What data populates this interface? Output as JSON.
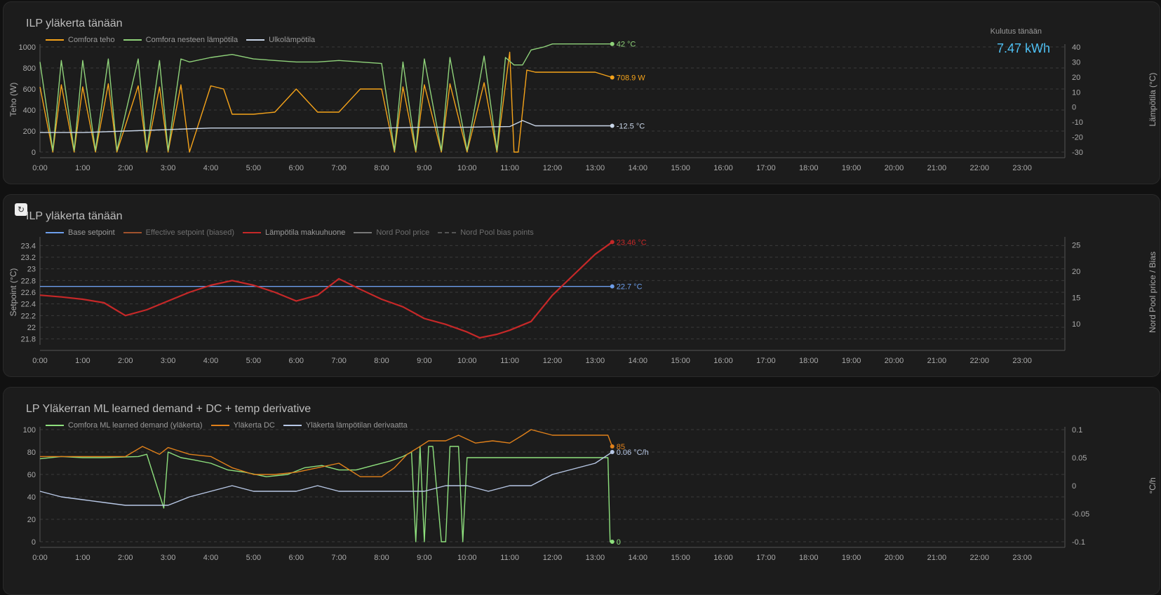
{
  "charts": [
    {
      "title": "ILP yläkerta tänään",
      "legend": [
        "Comfora teho",
        "Comfora nesteen lämpötila",
        "Ulkolämpötila"
      ],
      "kpi": {
        "label": "Kulutus tänään",
        "value": "7.47 kWh"
      },
      "colors": {
        "power": "#f5a31a",
        "liquid": "#8fd27a",
        "outdoor": "#c9d6e8",
        "grid": "#3a3a3a",
        "axis": "#aaaaaa"
      }
    },
    {
      "title": "ILP yläkerta tänään",
      "refresh_icon": "↻",
      "legend": [
        "Base setpoint",
        "Effective setpoint (biased)",
        "Lämpötila makuuhuone",
        "Nord Pool price",
        "Nord Pool bias points"
      ],
      "colors": {
        "base": "#6d9eeb",
        "effective": "#a0522d",
        "room": "#c62828",
        "price": "#777777",
        "bias": "#555555"
      }
    },
    {
      "title": "LP Yläkerran ML learned demand + DC + temp derivative",
      "legend": [
        "Comfora ML learned demand (yläkerta)",
        "Yläkerta DC",
        "Yläkerta lämpötilan derivaatta"
      ],
      "colors": {
        "demand": "#8ee07d",
        "dc": "#e0801a",
        "deriv": "#b8c8e6"
      }
    }
  ],
  "chart_data": [
    {
      "type": "line",
      "title": "ILP yläkerta tänään",
      "x_ticks": [
        "0:00",
        "1:00",
        "2:00",
        "3:00",
        "4:00",
        "5:00",
        "6:00",
        "7:00",
        "8:00",
        "9:00",
        "10:00",
        "11:00",
        "12:00",
        "13:00",
        "14:00",
        "15:00",
        "16:00",
        "17:00",
        "18:00",
        "19:00",
        "20:00",
        "21:00",
        "22:00",
        "23:00"
      ],
      "y_left": {
        "label": "Teho (W)",
        "range": [
          0,
          1000
        ],
        "ticks": [
          "0",
          "200",
          "400",
          "600",
          "800",
          "1000"
        ]
      },
      "y_right": {
        "label": "Lämpötila (°C)",
        "range": [
          -30,
          40
        ],
        "ticks": [
          "-30",
          "-20",
          "-10",
          "0",
          "10",
          "20",
          "30",
          "40"
        ]
      },
      "series": [
        {
          "name": "Comfora teho",
          "axis": "left",
          "end_label": "708.9 W",
          "x": [
            0,
            0.3,
            0.5,
            0.8,
            1.0,
            1.3,
            1.6,
            1.8,
            2.3,
            2.5,
            2.8,
            3.0,
            3.3,
            3.5,
            4.0,
            4.3,
            4.5,
            5.0,
            5.5,
            6.0,
            6.5,
            7.0,
            7.5,
            8.0,
            8.3,
            8.5,
            8.8,
            9.0,
            9.4,
            9.6,
            10.0,
            10.4,
            10.7,
            10.9,
            11.0,
            11.1,
            11.2,
            11.4,
            11.6,
            12.0,
            12.5,
            13.0,
            13.4
          ],
          "y": [
            620,
            0,
            640,
            0,
            620,
            0,
            650,
            0,
            630,
            0,
            620,
            0,
            640,
            0,
            630,
            600,
            360,
            360,
            380,
            600,
            380,
            380,
            600,
            600,
            0,
            620,
            0,
            640,
            0,
            650,
            0,
            660,
            0,
            640,
            950,
            0,
            0,
            780,
            760,
            760,
            760,
            760,
            710
          ]
        },
        {
          "name": "Comfora nesteen lämpötila",
          "axis": "right",
          "end_label": "42 °C",
          "x": [
            0,
            0.3,
            0.5,
            0.8,
            1.0,
            1.3,
            1.6,
            1.8,
            2.3,
            2.5,
            2.8,
            3.0,
            3.3,
            3.5,
            4.0,
            4.5,
            5.0,
            5.5,
            6.0,
            6.5,
            7.0,
            7.5,
            8.0,
            8.3,
            8.5,
            8.8,
            9.0,
            9.4,
            9.6,
            10.0,
            10.4,
            10.7,
            10.9,
            11.1,
            11.3,
            11.5,
            11.8,
            12.0,
            12.5,
            13.0,
            13.4
          ],
          "y": [
            30,
            -29,
            31,
            -29,
            31,
            -29,
            32,
            -29,
            32,
            -29,
            31,
            -29,
            32,
            30,
            33,
            35,
            32,
            31,
            30,
            30,
            31,
            30,
            29,
            -29,
            30,
            -29,
            32,
            -29,
            33,
            -29,
            34,
            -29,
            33,
            28,
            28,
            38,
            40,
            42,
            42,
            42,
            42
          ]
        },
        {
          "name": "Ulkolämpötila",
          "axis": "right",
          "end_label": "-12.5 °C",
          "x": [
            0,
            1,
            2,
            3,
            4,
            5,
            6,
            7,
            8,
            9,
            10,
            11,
            11.3,
            11.6,
            12,
            13,
            13.4
          ],
          "y": [
            -17,
            -17,
            -16,
            -15,
            -14,
            -14,
            -14,
            -14,
            -14,
            -13.5,
            -13.5,
            -13,
            -9,
            -12.5,
            -12.5,
            -12.5,
            -12.5
          ]
        }
      ]
    },
    {
      "type": "line",
      "title": "ILP yläkerta tänään",
      "x_ticks": [
        "0:00",
        "1:00",
        "2:00",
        "3:00",
        "4:00",
        "5:00",
        "6:00",
        "7:00",
        "8:00",
        "9:00",
        "10:00",
        "11:00",
        "12:00",
        "13:00",
        "14:00",
        "15:00",
        "16:00",
        "17:00",
        "18:00",
        "19:00",
        "20:00",
        "21:00",
        "22:00",
        "23:00"
      ],
      "y_left": {
        "label": "Setpoint (°C)",
        "range": [
          21.7,
          23.5
        ],
        "ticks": [
          "21.8",
          "22",
          "22.2",
          "22.4",
          "22.6",
          "22.8",
          "23",
          "23.2",
          "23.4"
        ]
      },
      "y_right": {
        "label": "Nord Pool price / Bias",
        "range": [
          6,
          26
        ],
        "ticks": [
          "10",
          "15",
          "20",
          "25"
        ]
      },
      "series": [
        {
          "name": "Base setpoint",
          "axis": "left",
          "end_label": "22.7 °C",
          "x": [
            0,
            13.4
          ],
          "y": [
            22.7,
            22.7
          ]
        },
        {
          "name": "Lämpötila makuuhuone",
          "axis": "left",
          "end_label": "23.46 °C",
          "x": [
            0,
            0.5,
            1.0,
            1.5,
            2.0,
            2.5,
            3.0,
            3.5,
            4.0,
            4.5,
            5.0,
            5.5,
            6.0,
            6.5,
            7.0,
            7.5,
            8.0,
            8.5,
            9.0,
            9.5,
            10.0,
            10.3,
            10.7,
            11.0,
            11.5,
            12.0,
            12.5,
            13.0,
            13.4
          ],
          "y": [
            22.55,
            22.52,
            22.48,
            22.42,
            22.2,
            22.3,
            22.45,
            22.6,
            22.72,
            22.8,
            22.72,
            22.6,
            22.45,
            22.55,
            22.83,
            22.65,
            22.48,
            22.35,
            22.15,
            22.05,
            21.92,
            21.82,
            21.88,
            21.95,
            22.1,
            22.55,
            22.9,
            23.25,
            23.46
          ]
        }
      ]
    },
    {
      "type": "line",
      "title": "LP Yläkerran ML learned demand + DC + temp derivative",
      "x_ticks": [
        "0:00",
        "1:00",
        "2:00",
        "3:00",
        "4:00",
        "5:00",
        "6:00",
        "7:00",
        "8:00",
        "9:00",
        "10:00",
        "11:00",
        "12:00",
        "13:00",
        "14:00",
        "15:00",
        "16:00",
        "17:00",
        "18:00",
        "19:00",
        "20:00",
        "21:00",
        "22:00",
        "23:00"
      ],
      "y_left": {
        "label": "",
        "range": [
          0,
          100
        ],
        "ticks": [
          "0",
          "20",
          "40",
          "60",
          "80",
          "100"
        ]
      },
      "y_right": {
        "label": "°C/h",
        "range": [
          -0.1,
          0.1
        ],
        "ticks": [
          "-0.1",
          "-0.05",
          "0",
          "0.05",
          "0.1"
        ]
      },
      "series": [
        {
          "name": "Comfora ML learned demand (yläkerta)",
          "axis": "left",
          "end_label": "0",
          "x": [
            0,
            0.5,
            1.0,
            1.5,
            2.3,
            2.5,
            2.9,
            3.0,
            3.3,
            3.6,
            4.0,
            4.4,
            4.8,
            5.3,
            5.8,
            6.2,
            6.6,
            7.0,
            7.4,
            7.8,
            8.2,
            8.5,
            8.7,
            8.8,
            8.9,
            9.0,
            9.1,
            9.2,
            9.4,
            9.5,
            9.6,
            9.8,
            9.9,
            10.0,
            10.2,
            11.0,
            12.0,
            13.0,
            13.3,
            13.35,
            13.4
          ],
          "y": [
            74,
            76,
            75,
            75,
            76,
            78,
            30,
            80,
            75,
            73,
            70,
            64,
            62,
            58,
            60,
            66,
            68,
            64,
            64,
            68,
            72,
            76,
            80,
            0,
            85,
            0,
            85,
            85,
            0,
            0,
            85,
            85,
            0,
            75,
            75,
            75,
            75,
            75,
            75,
            0,
            0
          ]
        },
        {
          "name": "Yläkerta DC",
          "axis": "left",
          "end_label": "85",
          "x": [
            0,
            1,
            2,
            2.4,
            2.8,
            3.0,
            3.5,
            4.0,
            4.5,
            5.0,
            5.5,
            6.0,
            6.5,
            7.0,
            7.5,
            8.0,
            8.3,
            8.6,
            8.9,
            9.1,
            9.5,
            9.8,
            10.2,
            10.6,
            11.0,
            11.3,
            11.5,
            12.0,
            12.5,
            13.0,
            13.3,
            13.4
          ],
          "y": [
            76,
            76,
            76,
            85,
            78,
            84,
            78,
            76,
            66,
            60,
            60,
            62,
            66,
            70,
            58,
            58,
            66,
            78,
            85,
            90,
            90,
            95,
            88,
            90,
            88,
            95,
            100,
            95,
            95,
            95,
            95,
            85
          ]
        },
        {
          "name": "Yläkerta lämpötilan derivaatta",
          "axis": "right",
          "end_label": "0.06 °C/h",
          "x": [
            0,
            0.5,
            1.0,
            1.5,
            2.0,
            2.5,
            3.0,
            3.5,
            4.0,
            4.5,
            5.0,
            5.5,
            6.0,
            6.5,
            7.0,
            7.5,
            8.0,
            8.5,
            9.0,
            9.5,
            10.0,
            10.5,
            11.0,
            11.5,
            12.0,
            12.5,
            13.0,
            13.4
          ],
          "y": [
            -0.01,
            -0.02,
            -0.025,
            -0.03,
            -0.035,
            -0.035,
            -0.035,
            -0.02,
            -0.01,
            0,
            -0.01,
            -0.01,
            -0.01,
            0,
            -0.01,
            -0.01,
            -0.01,
            -0.01,
            -0.01,
            0,
            0,
            -0.01,
            0,
            0,
            0.02,
            0.03,
            0.04,
            0.06
          ]
        }
      ]
    }
  ]
}
